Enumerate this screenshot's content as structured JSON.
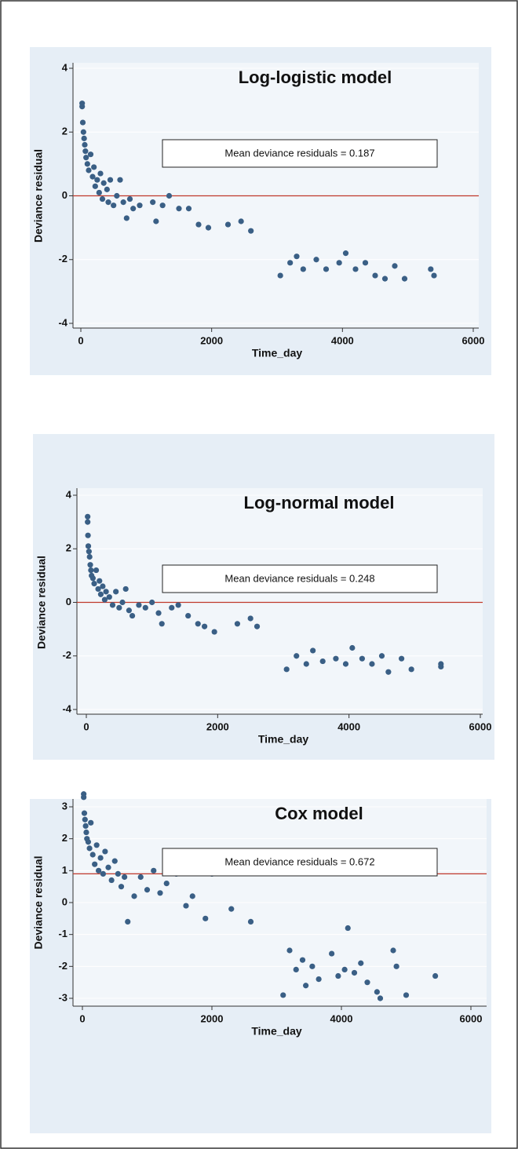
{
  "chart_data": [
    {
      "type": "scatter",
      "title": "Log-logistic model",
      "x_label": "Time_day",
      "y_label": "Deviance residual",
      "annotation": "Mean deviance residuals = 0.187",
      "color": "#3a5f85",
      "hline": 0,
      "hline_color": "#c0392b",
      "xlim": [
        -100,
        6000
      ],
      "ylim": [
        -4,
        4
      ],
      "xticks": [
        0,
        2000,
        4000,
        6000
      ],
      "yticks": [
        -4,
        -2,
        0,
        2,
        4
      ],
      "grid": true,
      "x": [
        20,
        20,
        30,
        40,
        50,
        60,
        70,
        80,
        100,
        120,
        150,
        180,
        200,
        220,
        250,
        280,
        300,
        330,
        350,
        400,
        420,
        450,
        500,
        550,
        600,
        650,
        700,
        750,
        800,
        900,
        1100,
        1150,
        1250,
        1350,
        1500,
        1650,
        1800,
        1950,
        2250,
        2450,
        2600,
        3050,
        3200,
        3300,
        3400,
        3600,
        3750,
        3950,
        4050,
        4200,
        4350,
        4500,
        4650,
        4800,
        4950,
        5350,
        5400
      ],
      "y": [
        2.8,
        2.9,
        2.3,
        2.0,
        1.8,
        1.6,
        1.4,
        1.2,
        1.0,
        0.8,
        1.3,
        0.6,
        0.9,
        0.3,
        0.5,
        0.1,
        0.7,
        -0.1,
        0.4,
        0.2,
        -0.2,
        0.5,
        -0.3,
        0.0,
        0.5,
        -0.2,
        -0.7,
        -0.1,
        -0.4,
        -0.3,
        -0.2,
        -0.8,
        -0.3,
        0.0,
        -0.4,
        -0.4,
        -0.9,
        -1.0,
        -0.9,
        -0.8,
        -1.1,
        -2.5,
        -2.1,
        -1.9,
        -2.3,
        -2.0,
        -2.3,
        -2.1,
        -1.8,
        -2.3,
        -2.1,
        -2.5,
        -2.6,
        -2.2,
        -2.6,
        -2.3,
        -2.5
      ]
    },
    {
      "type": "scatter",
      "title": "Log-normal model",
      "x_label": "Time_day",
      "y_label": "Deviance residual",
      "annotation": "Mean deviance residuals = 0.248",
      "color": "#3a5f85",
      "hline": 0,
      "hline_color": "#c0392b",
      "xlim": [
        -100,
        6000
      ],
      "ylim": [
        -4,
        4
      ],
      "xticks": [
        0,
        2000,
        4000,
        6000
      ],
      "yticks": [
        -4,
        -2,
        0,
        2,
        4
      ],
      "grid": true,
      "x": [
        20,
        20,
        25,
        30,
        40,
        50,
        60,
        70,
        80,
        100,
        120,
        150,
        180,
        200,
        220,
        250,
        280,
        300,
        350,
        400,
        450,
        500,
        550,
        600,
        650,
        700,
        800,
        900,
        1000,
        1100,
        1150,
        1300,
        1400,
        1550,
        1700,
        1800,
        1950,
        2300,
        2500,
        2600,
        3050,
        3200,
        3350,
        3450,
        3600,
        3800,
        3950,
        4050,
        4200,
        4350,
        4500,
        4600,
        4800,
        4950,
        5400,
        5400
      ],
      "y": [
        3.2,
        3.0,
        2.5,
        2.1,
        1.9,
        1.7,
        1.4,
        1.2,
        1.0,
        0.9,
        0.7,
        1.2,
        0.5,
        0.8,
        0.3,
        0.6,
        0.1,
        0.4,
        0.2,
        -0.1,
        0.4,
        -0.2,
        0.0,
        0.5,
        -0.3,
        -0.5,
        -0.1,
        -0.2,
        0.0,
        -0.4,
        -0.8,
        -0.2,
        -0.1,
        -0.5,
        -0.8,
        -0.9,
        -1.1,
        -0.8,
        -0.6,
        -0.9,
        -2.5,
        -2.0,
        -2.3,
        -1.8,
        -2.2,
        -2.1,
        -2.3,
        -1.7,
        -2.1,
        -2.3,
        -2.0,
        -2.6,
        -2.1,
        -2.5,
        -2.3,
        -2.4
      ]
    },
    {
      "type": "scatter",
      "title": "Cox model",
      "x_label": "Time_day",
      "y_label": "Deviance residual",
      "annotation": "Mean deviance residuals = 0.672",
      "color": "#3a5f85",
      "hline": 0.9,
      "hline_color": "#c0392b",
      "xlim": [
        -100,
        6000
      ],
      "ylim": [
        -3.2,
        3.5
      ],
      "xticks": [
        0,
        2000,
        4000,
        6000
      ],
      "yticks": [
        -3,
        -2,
        -1,
        0,
        1,
        2,
        3
      ],
      "grid": true,
      "x": [
        20,
        20,
        30,
        40,
        50,
        60,
        70,
        90,
        110,
        130,
        160,
        190,
        220,
        250,
        280,
        320,
        350,
        400,
        450,
        500,
        550,
        600,
        650,
        700,
        800,
        900,
        1000,
        1100,
        1200,
        1300,
        1450,
        1600,
        1700,
        1800,
        1900,
        2000,
        2300,
        2600,
        3100,
        3200,
        3300,
        3400,
        3450,
        3550,
        3650,
        3850,
        3950,
        4050,
        4100,
        4200,
        4300,
        4400,
        4550,
        4600,
        4800,
        4850,
        5000,
        5450
      ],
      "y": [
        3.4,
        3.3,
        2.8,
        2.6,
        2.4,
        2.2,
        2.0,
        1.9,
        1.7,
        2.5,
        1.5,
        1.2,
        1.8,
        1.0,
        1.4,
        0.9,
        1.6,
        1.1,
        0.7,
        1.3,
        0.9,
        0.5,
        0.8,
        -0.6,
        0.2,
        0.8,
        0.4,
        1.0,
        0.3,
        0.6,
        0.9,
        -0.1,
        0.2,
        1.1,
        -0.5,
        0.9,
        -0.2,
        -0.6,
        -2.9,
        -1.5,
        -2.1,
        -1.8,
        -2.6,
        -2.0,
        -2.4,
        -1.6,
        -2.3,
        -2.1,
        -0.8,
        -2.2,
        -1.9,
        -2.5,
        -2.8,
        -3.0,
        -1.5,
        -2.0,
        -2.9,
        -2.3
      ]
    }
  ]
}
